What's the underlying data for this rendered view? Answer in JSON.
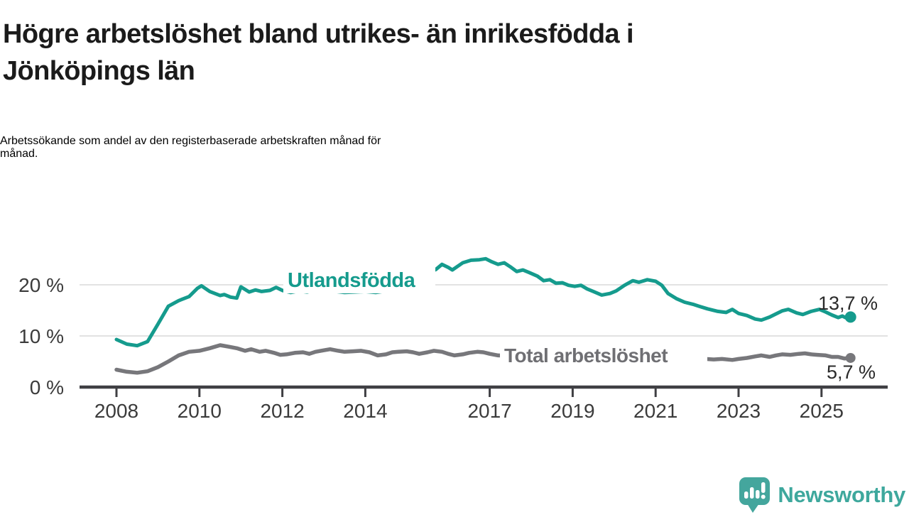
{
  "header": {
    "title_lines": [
      "Högre arbetslöshet bland utrikes- än inrikesfödda i",
      "Jönköpings län"
    ],
    "subtitle_lines": [
      "Arbetssökande som andel av den registerbaserade arbetskraften månad för",
      "månad."
    ]
  },
  "footer": {
    "brand": "Newsworthy"
  },
  "colors": {
    "accent_teal": "#159b8d",
    "series_gray": "#77777b",
    "label_gray": "#6f6f73",
    "logo_teal": "#44a69d",
    "axis_dark": "#3f3f43",
    "gridline": "#d9d9d9",
    "tick_label": "#3b3b3b",
    "end_label": "#2a2a2a"
  },
  "chart_data": {
    "type": "line",
    "unit": "%",
    "x_range": [
      2007.1,
      2026.6
    ],
    "ylim": [
      0,
      26
    ],
    "grid": "horizontal-only",
    "x_ticks": [
      2008,
      2010,
      2012,
      2014,
      2017,
      2019,
      2021,
      2023,
      2025
    ],
    "y_ticks": [
      {
        "value": 0,
        "label": "0 %"
      },
      {
        "value": 10,
        "label": "10 %"
      },
      {
        "value": 20,
        "label": "20 %"
      }
    ],
    "series": [
      {
        "name": "Utlandsfödda",
        "color": "#159b8d",
        "end_label": "13,7 %",
        "end_value": 13.7,
        "points": [
          [
            2008.0,
            9.3
          ],
          [
            2008.25,
            8.4
          ],
          [
            2008.5,
            8.1
          ],
          [
            2008.75,
            8.9
          ],
          [
            2009.0,
            12.3
          ],
          [
            2009.25,
            15.8
          ],
          [
            2009.5,
            16.9
          ],
          [
            2009.75,
            17.7
          ],
          [
            2009.95,
            19.3
          ],
          [
            2010.05,
            19.8
          ],
          [
            2010.25,
            18.7
          ],
          [
            2010.5,
            17.9
          ],
          [
            2010.6,
            18.1
          ],
          [
            2010.75,
            17.6
          ],
          [
            2010.9,
            17.4
          ],
          [
            2011.0,
            19.6
          ],
          [
            2011.2,
            18.6
          ],
          [
            2011.35,
            19.0
          ],
          [
            2011.5,
            18.7
          ],
          [
            2011.7,
            18.9
          ],
          [
            2011.85,
            19.5
          ],
          [
            2012.0,
            18.9
          ],
          [
            2012.2,
            18.5
          ],
          [
            2012.4,
            18.8
          ],
          [
            2012.6,
            18.6
          ],
          [
            2012.8,
            19.0
          ],
          [
            2012.95,
            19.6
          ],
          [
            2013.1,
            19.3
          ],
          [
            2013.3,
            18.7
          ],
          [
            2013.5,
            18.5
          ],
          [
            2013.75,
            18.6
          ],
          [
            2014.0,
            18.7
          ],
          [
            2014.25,
            18.5
          ],
          [
            2014.5,
            18.8
          ],
          [
            2014.75,
            19.4
          ],
          [
            2015.0,
            20.2
          ],
          [
            2015.25,
            21.2
          ],
          [
            2015.5,
            22.3
          ],
          [
            2015.7,
            23.0
          ],
          [
            2015.85,
            24.0
          ],
          [
            2016.0,
            23.4
          ],
          [
            2016.1,
            22.9
          ],
          [
            2016.35,
            24.3
          ],
          [
            2016.55,
            24.8
          ],
          [
            2016.75,
            24.9
          ],
          [
            2016.9,
            25.1
          ],
          [
            2017.05,
            24.5
          ],
          [
            2017.2,
            24.0
          ],
          [
            2017.35,
            24.3
          ],
          [
            2017.5,
            23.5
          ],
          [
            2017.65,
            22.6
          ],
          [
            2017.8,
            22.9
          ],
          [
            2017.95,
            22.4
          ],
          [
            2018.15,
            21.7
          ],
          [
            2018.3,
            20.8
          ],
          [
            2018.45,
            21.0
          ],
          [
            2018.6,
            20.3
          ],
          [
            2018.75,
            20.4
          ],
          [
            2018.9,
            19.9
          ],
          [
            2019.05,
            19.7
          ],
          [
            2019.2,
            19.9
          ],
          [
            2019.35,
            19.2
          ],
          [
            2019.5,
            18.7
          ],
          [
            2019.7,
            18.0
          ],
          [
            2019.9,
            18.3
          ],
          [
            2020.05,
            18.8
          ],
          [
            2020.25,
            19.9
          ],
          [
            2020.45,
            20.8
          ],
          [
            2020.6,
            20.5
          ],
          [
            2020.8,
            21.0
          ],
          [
            2021.0,
            20.7
          ],
          [
            2021.15,
            19.9
          ],
          [
            2021.3,
            18.3
          ],
          [
            2021.5,
            17.3
          ],
          [
            2021.7,
            16.6
          ],
          [
            2021.9,
            16.2
          ],
          [
            2022.05,
            15.8
          ],
          [
            2022.25,
            15.3
          ],
          [
            2022.5,
            14.8
          ],
          [
            2022.7,
            14.6
          ],
          [
            2022.85,
            15.2
          ],
          [
            2023.0,
            14.4
          ],
          [
            2023.2,
            14.0
          ],
          [
            2023.4,
            13.3
          ],
          [
            2023.55,
            13.1
          ],
          [
            2023.75,
            13.7
          ],
          [
            2023.9,
            14.3
          ],
          [
            2024.05,
            14.9
          ],
          [
            2024.2,
            15.2
          ],
          [
            2024.4,
            14.5
          ],
          [
            2024.55,
            14.2
          ],
          [
            2024.75,
            14.8
          ],
          [
            2024.95,
            15.2
          ],
          [
            2025.1,
            14.7
          ],
          [
            2025.25,
            14.1
          ],
          [
            2025.4,
            13.6
          ],
          [
            2025.5,
            13.9
          ],
          [
            2025.6,
            13.5
          ],
          [
            2025.7,
            13.7
          ]
        ]
      },
      {
        "name": "Total arbetslöshet",
        "color": "#77777b",
        "end_label": "5,7 %",
        "end_value": 5.7,
        "points": [
          [
            2008.0,
            3.4
          ],
          [
            2008.25,
            3.0
          ],
          [
            2008.5,
            2.8
          ],
          [
            2008.75,
            3.1
          ],
          [
            2009.0,
            3.9
          ],
          [
            2009.25,
            5.0
          ],
          [
            2009.5,
            6.2
          ],
          [
            2009.75,
            6.9
          ],
          [
            2010.0,
            7.1
          ],
          [
            2010.25,
            7.6
          ],
          [
            2010.5,
            8.2
          ],
          [
            2010.7,
            7.9
          ],
          [
            2010.9,
            7.6
          ],
          [
            2011.1,
            7.1
          ],
          [
            2011.25,
            7.4
          ],
          [
            2011.45,
            6.9
          ],
          [
            2011.6,
            7.1
          ],
          [
            2011.8,
            6.7
          ],
          [
            2011.95,
            6.3
          ],
          [
            2012.1,
            6.4
          ],
          [
            2012.3,
            6.7
          ],
          [
            2012.5,
            6.8
          ],
          [
            2012.65,
            6.5
          ],
          [
            2012.8,
            6.9
          ],
          [
            2013.0,
            7.2
          ],
          [
            2013.15,
            7.4
          ],
          [
            2013.35,
            7.1
          ],
          [
            2013.5,
            6.9
          ],
          [
            2013.7,
            7.0
          ],
          [
            2013.9,
            7.1
          ],
          [
            2014.1,
            6.8
          ],
          [
            2014.3,
            6.2
          ],
          [
            2014.5,
            6.4
          ],
          [
            2014.65,
            6.8
          ],
          [
            2014.8,
            6.9
          ],
          [
            2015.0,
            7.0
          ],
          [
            2015.15,
            6.8
          ],
          [
            2015.3,
            6.5
          ],
          [
            2015.5,
            6.8
          ],
          [
            2015.65,
            7.1
          ],
          [
            2015.85,
            6.9
          ],
          [
            2016.0,
            6.5
          ],
          [
            2016.15,
            6.2
          ],
          [
            2016.35,
            6.4
          ],
          [
            2016.5,
            6.7
          ],
          [
            2016.7,
            6.9
          ],
          [
            2016.85,
            6.8
          ],
          [
            2017.0,
            6.5
          ],
          [
            2017.2,
            6.2
          ],
          [
            2017.5,
            6.1
          ],
          [
            2017.75,
            6.0
          ],
          [
            2018.0,
            5.9
          ],
          [
            2018.5,
            5.8
          ],
          [
            2019.0,
            6.0
          ],
          [
            2019.5,
            6.2
          ],
          [
            2020.0,
            6.6
          ],
          [
            2020.3,
            7.6
          ],
          [
            2020.6,
            7.9
          ],
          [
            2021.0,
            7.5
          ],
          [
            2021.5,
            6.6
          ],
          [
            2022.0,
            5.9
          ],
          [
            2022.2,
            5.5
          ],
          [
            2022.4,
            5.4
          ],
          [
            2022.6,
            5.5
          ],
          [
            2022.85,
            5.3
          ],
          [
            2023.0,
            5.5
          ],
          [
            2023.2,
            5.7
          ],
          [
            2023.4,
            6.0
          ],
          [
            2023.55,
            6.2
          ],
          [
            2023.75,
            5.9
          ],
          [
            2023.9,
            6.2
          ],
          [
            2024.05,
            6.4
          ],
          [
            2024.25,
            6.3
          ],
          [
            2024.45,
            6.5
          ],
          [
            2024.6,
            6.6
          ],
          [
            2024.75,
            6.4
          ],
          [
            2024.9,
            6.3
          ],
          [
            2025.1,
            6.2
          ],
          [
            2025.25,
            5.9
          ],
          [
            2025.4,
            5.9
          ],
          [
            2025.55,
            5.6
          ],
          [
            2025.7,
            5.7
          ]
        ]
      }
    ]
  }
}
